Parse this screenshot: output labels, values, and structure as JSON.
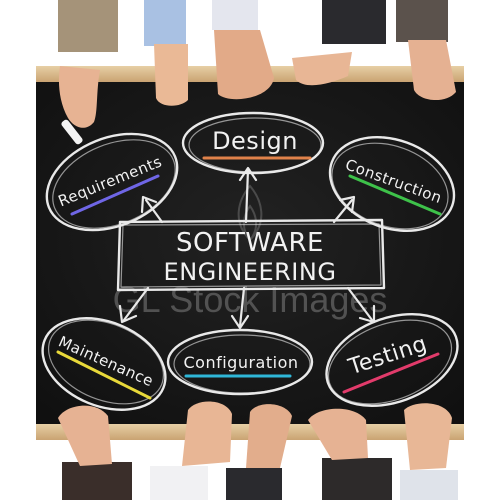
{
  "title": {
    "line1": "SOFTWARE",
    "line2": "ENGINEERING"
  },
  "nodes": {
    "design": "Design",
    "requirements": "Requirements",
    "construction": "Construction",
    "maintenance": "Maintenance",
    "configuration": "Configuration",
    "testing": "Testing"
  },
  "watermark": "GL Stock Images",
  "colors": {
    "board": "#141414",
    "frame": "#d8b98a",
    "chalk": "#eeeeee",
    "design_underline": "#e0824a",
    "requirements_underline": "#6f66e6",
    "construction_underline": "#3ec24a",
    "maintenance_underline": "#e8d93a",
    "configuration_underline": "#2fb7d8",
    "testing_underline": "#e23b6b"
  },
  "icons": [
    "hand-icon",
    "chalk-icon"
  ]
}
